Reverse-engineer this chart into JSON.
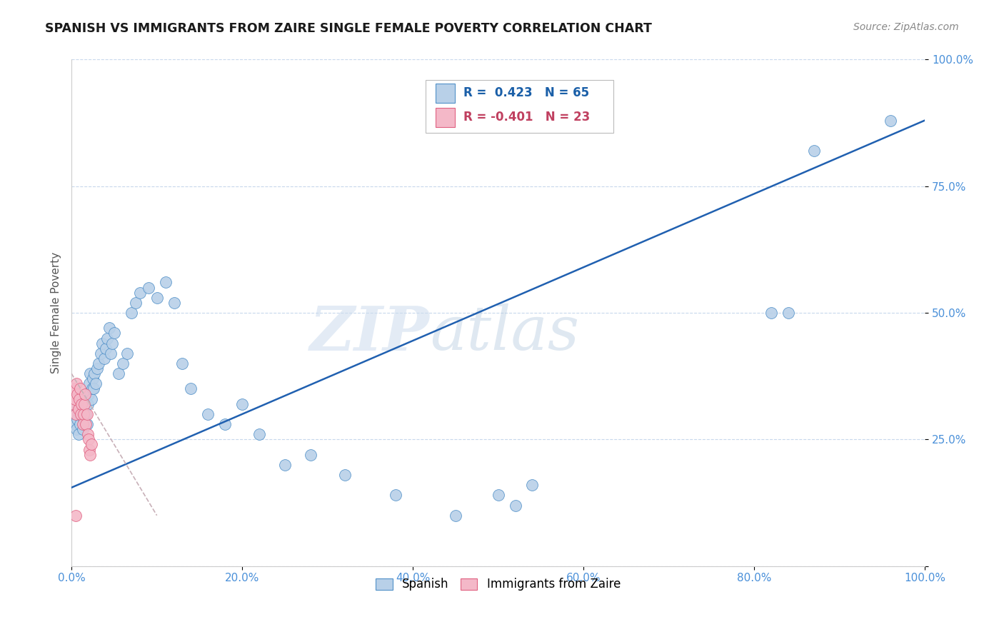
{
  "title": "SPANISH VS IMMIGRANTS FROM ZAIRE SINGLE FEMALE POVERTY CORRELATION CHART",
  "source": "Source: ZipAtlas.com",
  "ylabel": "Single Female Poverty",
  "watermark_zip": "ZIP",
  "watermark_atlas": "atlas",
  "blue_color": "#b8d0e8",
  "blue_edge_color": "#5090c8",
  "pink_color": "#f4b8c8",
  "pink_edge_color": "#e06080",
  "blue_line_color": "#2060b0",
  "pink_line_color": "#d08090",
  "background_color": "#ffffff",
  "grid_color": "#c8d8ec",
  "legend_blue_text_color": "#1a5fa8",
  "legend_pink_text_color": "#c04060",
  "tick_color": "#4a90d9",
  "title_color": "#1a1a1a",
  "source_color": "#888888",
  "ylabel_color": "#555555",
  "spanish_x": [
    0.003,
    0.004,
    0.005,
    0.006,
    0.007,
    0.008,
    0.009,
    0.01,
    0.011,
    0.012,
    0.013,
    0.014,
    0.015,
    0.016,
    0.017,
    0.018,
    0.019,
    0.02,
    0.021,
    0.022,
    0.023,
    0.024,
    0.025,
    0.026,
    0.027,
    0.028,
    0.03,
    0.032,
    0.034,
    0.036,
    0.038,
    0.04,
    0.042,
    0.044,
    0.046,
    0.048,
    0.05,
    0.055,
    0.06,
    0.065,
    0.07,
    0.075,
    0.08,
    0.09,
    0.1,
    0.11,
    0.12,
    0.13,
    0.14,
    0.16,
    0.18,
    0.2,
    0.22,
    0.25,
    0.28,
    0.32,
    0.38,
    0.45,
    0.5,
    0.52,
    0.54,
    0.82,
    0.84,
    0.87,
    0.96
  ],
  "spanish_y": [
    0.32,
    0.28,
    0.3,
    0.27,
    0.29,
    0.26,
    0.31,
    0.28,
    0.3,
    0.32,
    0.27,
    0.29,
    0.31,
    0.33,
    0.3,
    0.28,
    0.32,
    0.34,
    0.36,
    0.38,
    0.33,
    0.35,
    0.37,
    0.35,
    0.38,
    0.36,
    0.39,
    0.4,
    0.42,
    0.44,
    0.41,
    0.43,
    0.45,
    0.47,
    0.42,
    0.44,
    0.46,
    0.38,
    0.4,
    0.42,
    0.5,
    0.52,
    0.54,
    0.55,
    0.53,
    0.56,
    0.52,
    0.4,
    0.35,
    0.3,
    0.28,
    0.32,
    0.26,
    0.2,
    0.22,
    0.18,
    0.14,
    0.1,
    0.14,
    0.12,
    0.16,
    0.5,
    0.5,
    0.82,
    0.88
  ],
  "zaire_x": [
    0.002,
    0.003,
    0.004,
    0.005,
    0.006,
    0.007,
    0.008,
    0.009,
    0.01,
    0.011,
    0.012,
    0.013,
    0.014,
    0.015,
    0.016,
    0.017,
    0.018,
    0.019,
    0.02,
    0.021,
    0.022,
    0.023,
    0.005
  ],
  "zaire_y": [
    0.32,
    0.35,
    0.33,
    0.3,
    0.36,
    0.34,
    0.31,
    0.33,
    0.35,
    0.3,
    0.32,
    0.28,
    0.3,
    0.32,
    0.34,
    0.28,
    0.3,
    0.26,
    0.25,
    0.23,
    0.22,
    0.24,
    0.1
  ],
  "blue_trend_x": [
    0.0,
    1.0
  ],
  "blue_trend_y": [
    0.155,
    0.88
  ],
  "pink_trend_x": [
    0.0,
    0.1
  ],
  "pink_trend_y": [
    0.38,
    0.1
  ],
  "xticks": [
    0.0,
    0.2,
    0.4,
    0.6,
    0.8,
    1.0
  ],
  "xticklabels": [
    "0.0%",
    "20.0%",
    "40.0%",
    "60.0%",
    "80.0%",
    "100.0%"
  ],
  "yticks": [
    0.0,
    0.25,
    0.5,
    0.75,
    1.0
  ],
  "yticklabels": [
    "",
    "25.0%",
    "50.0%",
    "75.0%",
    "100.0%"
  ]
}
